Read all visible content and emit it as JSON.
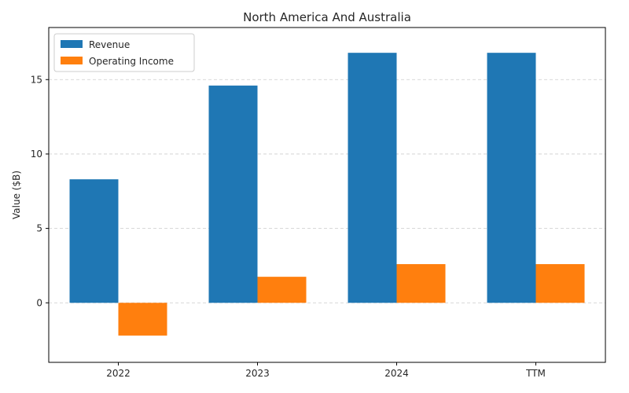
{
  "chart_data": {
    "type": "bar",
    "title": "North America And Australia",
    "xlabel": "",
    "ylabel": "Value ($B)",
    "categories": [
      "2022",
      "2023",
      "2024",
      "TTM"
    ],
    "series": [
      {
        "name": "Revenue",
        "values": [
          8.3,
          14.6,
          16.8,
          16.8
        ],
        "color": "#1f77b4"
      },
      {
        "name": "Operating Income",
        "values": [
          -2.2,
          1.75,
          2.6,
          2.6
        ],
        "color": "#ff7f0e"
      }
    ],
    "ylim": [
      -4.0,
      18.5
    ],
    "yticks": [
      0,
      5,
      10,
      15
    ],
    "grid": "y-dashed",
    "legend_position": "top-left"
  }
}
